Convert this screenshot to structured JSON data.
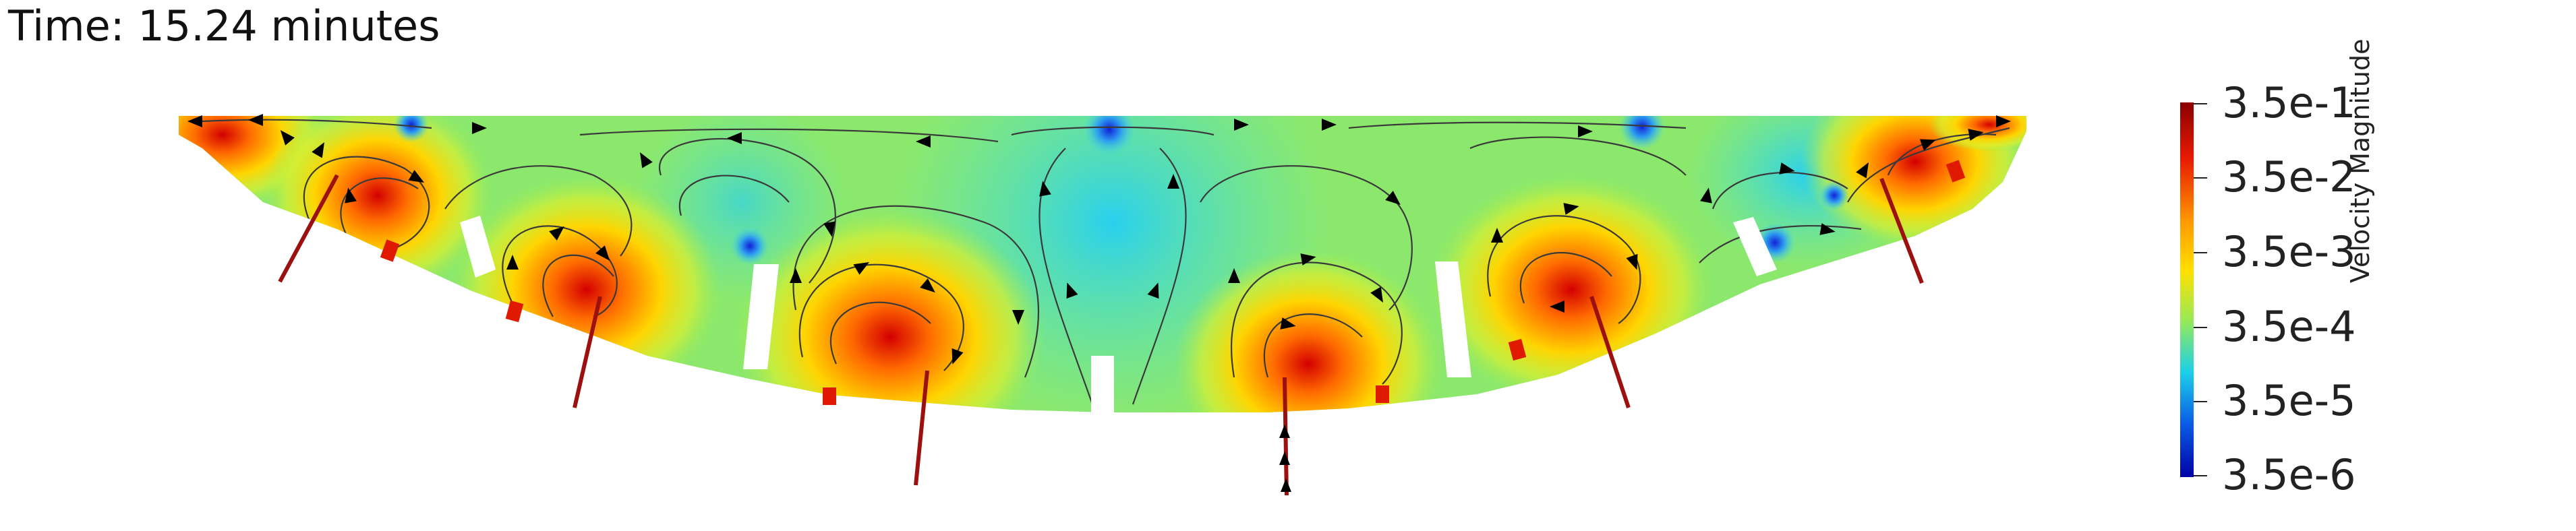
{
  "time": {
    "label": "Time: 15.24 minutes"
  },
  "colorbar": {
    "title": "Velocity Magnitude",
    "ticks": [
      "3.5e-1",
      "3.5e-2",
      "3.5e-3",
      "3.5e-4",
      "3.5e-5",
      "3.5e-6"
    ],
    "stops": [
      {
        "offset": 0.0,
        "color": "#8b0000"
      },
      {
        "offset": 0.15,
        "color": "#e81a00"
      },
      {
        "offset": 0.32,
        "color": "#ff9a00"
      },
      {
        "offset": 0.45,
        "color": "#ffe000"
      },
      {
        "offset": 0.58,
        "color": "#98ea55"
      },
      {
        "offset": 0.72,
        "color": "#1cd0e8"
      },
      {
        "offset": 0.86,
        "color": "#0a5ae6"
      },
      {
        "offset": 1.0,
        "color": "#0000a8"
      }
    ]
  },
  "colors": {
    "field_base": "#5fe8b4",
    "jet_color": "#9c1010",
    "streamline": "#3a3a3a",
    "arrow": "#000000"
  }
}
